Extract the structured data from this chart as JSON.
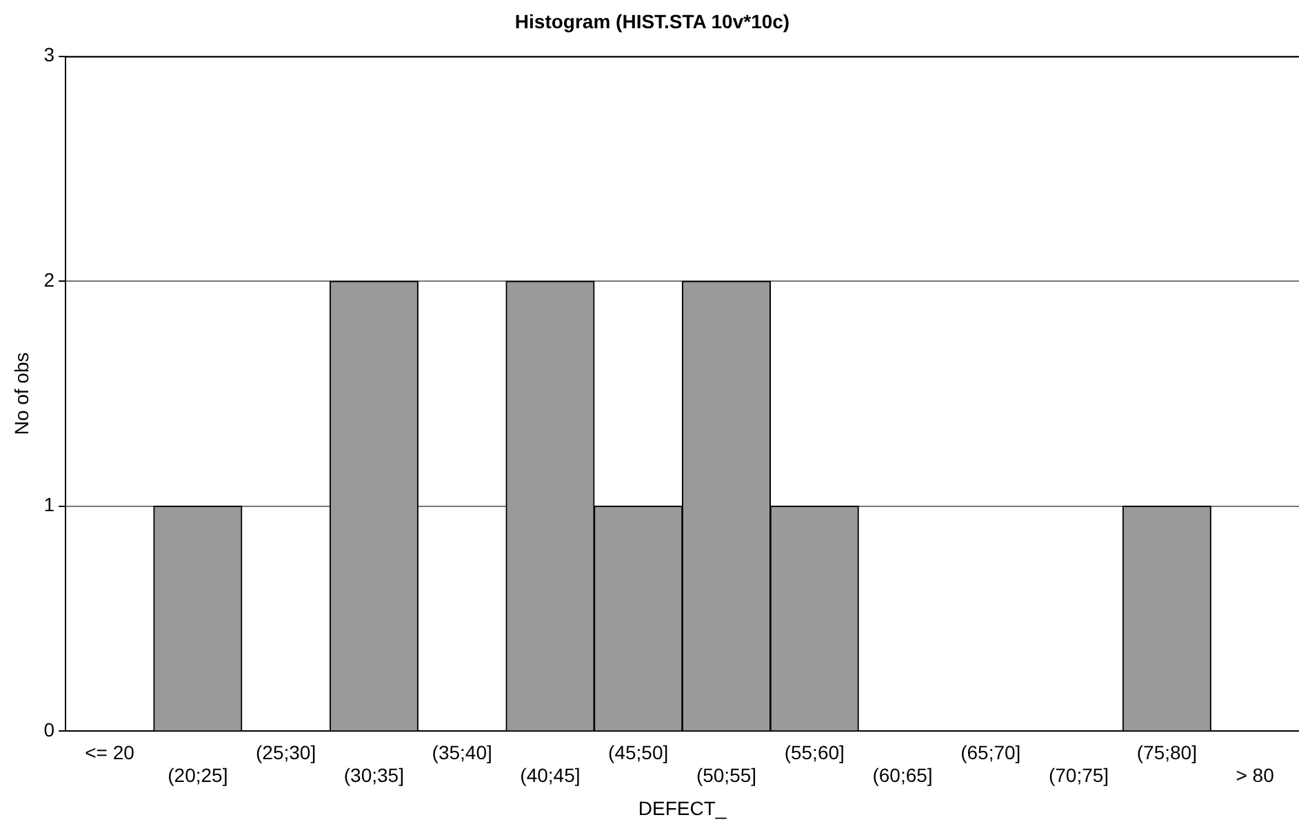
{
  "chart_data": {
    "type": "bar",
    "title": "Histogram (HIST.STA 10v*10c)",
    "xlabel": "DEFECT_",
    "ylabel": "No of obs",
    "categories": [
      "<= 20",
      "(20;25]",
      "(25;30]",
      "(30;35]",
      "(35;40]",
      "(40;45]",
      "(45;50]",
      "(50;55]",
      "(55;60]",
      "(60;65]",
      "(65;70]",
      "(70;75]",
      "(75;80]",
      "> 80"
    ],
    "values": [
      0,
      1,
      0,
      2,
      0,
      2,
      1,
      2,
      1,
      0,
      0,
      0,
      1,
      0
    ],
    "color": "#9a9a9a",
    "ylim": [
      0,
      3
    ],
    "yticks": [
      0,
      1,
      2,
      3
    ],
    "grid": "y",
    "legend": false
  }
}
